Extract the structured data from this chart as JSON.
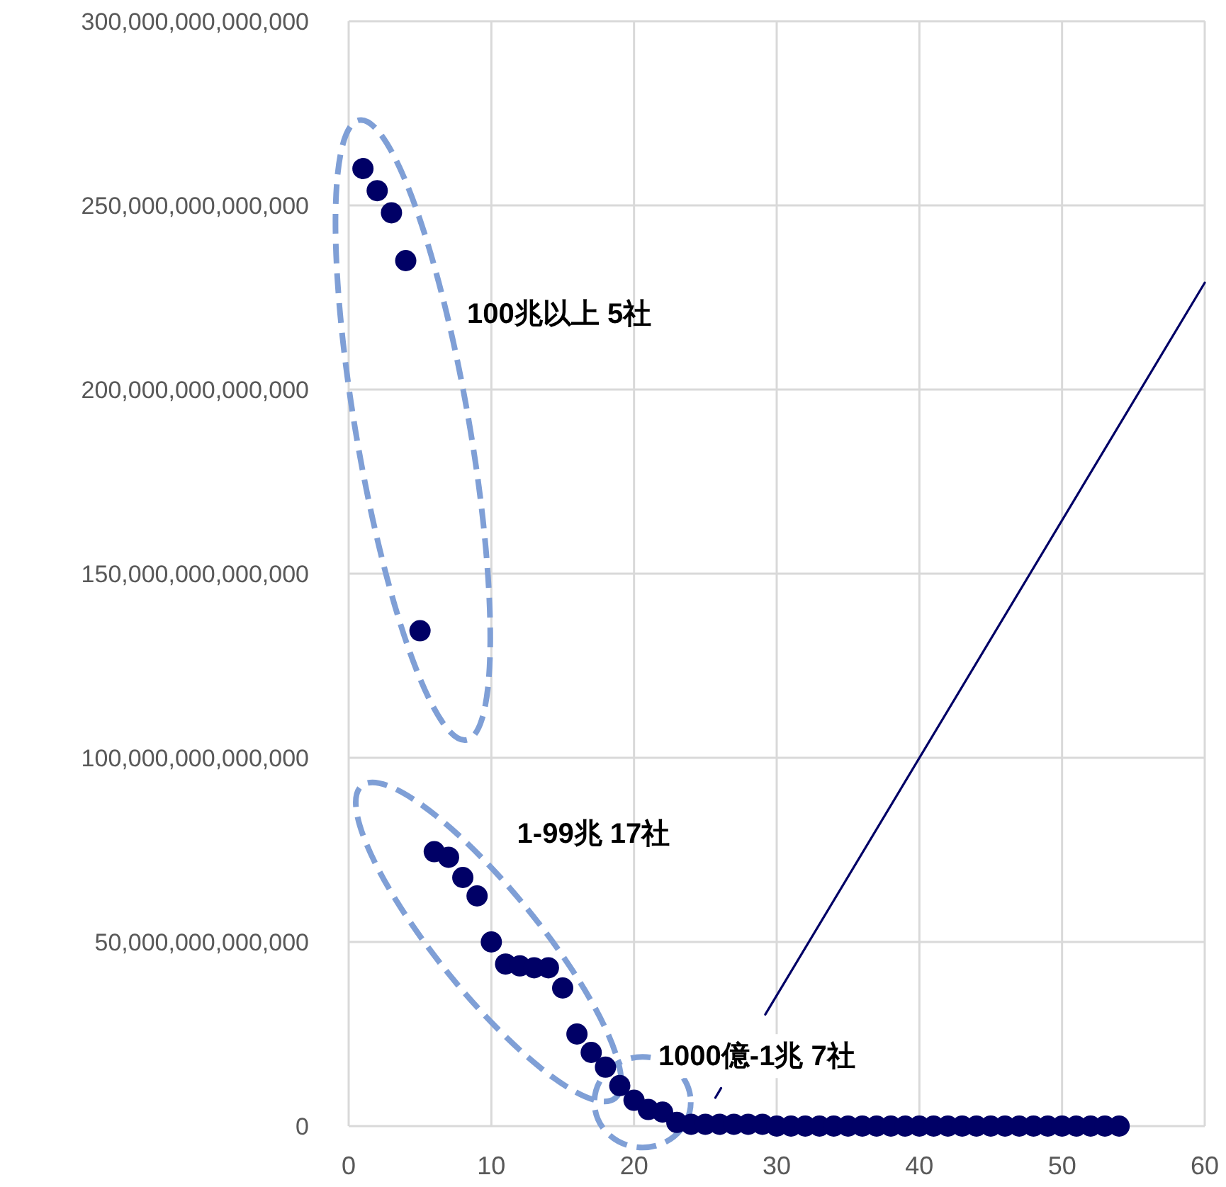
{
  "chart_data": {
    "type": "scatter",
    "marker": "circle",
    "grid": true,
    "xlim": [
      0,
      60
    ],
    "xticks": [
      0,
      10,
      20,
      30,
      40,
      50,
      60
    ],
    "ylim": [
      0,
      300000000000000
    ],
    "yticks": [
      {
        "value": 0,
        "label": "0"
      },
      {
        "value": 50000000000000,
        "label": "50,000,000,000,000"
      },
      {
        "value": 100000000000000,
        "label": "100,000,000,000,000"
      },
      {
        "value": 150000000000000,
        "label": "150,000,000,000,000"
      },
      {
        "value": 200000000000000,
        "label": "200,000,000,000,000"
      },
      {
        "value": 250000000000000,
        "label": "250,000,000,000,000"
      },
      {
        "value": 300000000000000,
        "label": "300,000,000,000,000"
      }
    ],
    "series": [
      {
        "color": "#000066",
        "x": [
          1,
          2,
          3,
          4,
          5,
          6,
          7,
          8,
          9,
          10,
          11,
          12,
          13,
          14,
          15,
          16,
          17,
          18,
          19,
          20,
          21,
          22,
          23,
          24,
          25,
          26,
          27,
          28,
          29,
          30,
          31,
          32,
          33,
          34,
          35,
          36,
          37,
          38,
          39,
          40,
          41,
          42,
          43,
          44,
          45,
          46,
          47,
          48,
          49,
          50,
          51,
          52,
          53,
          54
        ],
        "values": [
          260000000000000,
          254000000000000,
          248000000000000,
          235000000000000,
          134500000000000,
          74500000000000,
          73000000000000,
          67500000000000,
          62500000000000,
          50000000000000,
          44000000000000,
          43500000000000,
          43000000000000,
          43000000000000,
          37500000000000,
          25000000000000,
          20000000000000,
          16000000000000,
          11000000000000,
          7000000000000,
          4500000000000,
          3800000000000,
          1000000000000,
          500000000000,
          500000000000,
          500000000000,
          500000000000,
          500000000000,
          500000000000,
          0,
          0,
          0,
          0,
          0,
          0,
          0,
          0,
          0,
          0,
          0,
          0,
          0,
          0,
          0,
          0,
          0,
          0,
          0,
          0,
          0,
          0,
          0,
          0,
          0
        ]
      },
      {
        "type": "line",
        "marker": "none",
        "color": "#000066",
        "x": [
          25.7,
          26.1
        ],
        "values": [
          7700000000000,
          10300000000000
        ]
      },
      {
        "type": "line",
        "marker": "none",
        "color": "#000066",
        "x": [
          29.2,
          60
        ],
        "values": [
          30300000000000,
          229000000000000
        ]
      }
    ],
    "annotations": [
      "100兆以上 5社",
      "1-99兆 17社",
      "1000億-1兆 7社"
    ]
  }
}
